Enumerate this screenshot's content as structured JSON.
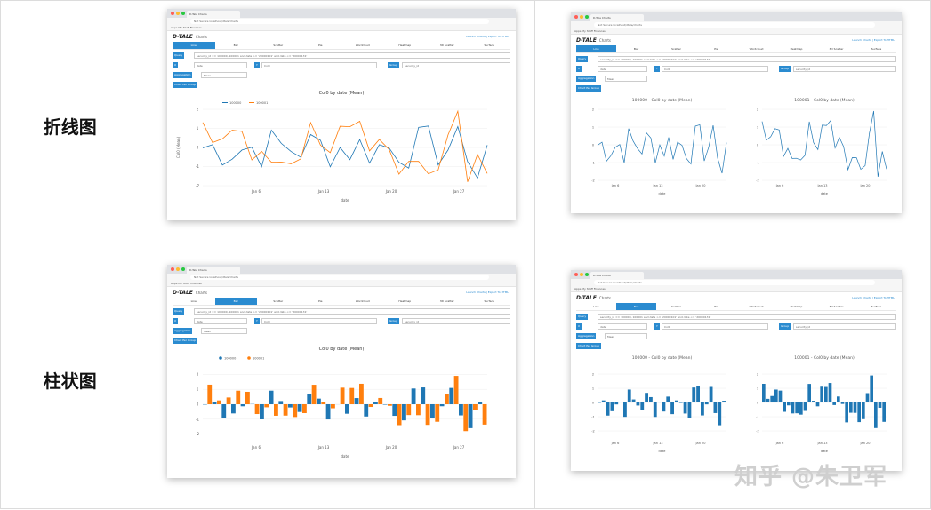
{
  "rows": [
    {
      "label": "折线图",
      "left": {
        "browser_tab": "D-Tale Charts",
        "url": "Not Secure  localhost/dtale/charts",
        "bookmarks": "Apps   My Stuff   Finances",
        "app_title": "Charts",
        "app_links": "Launch Charts   |   Export To HTML",
        "tabs": [
          "Line",
          "Bar",
          "Scatter",
          "Pie",
          "Wordcloud",
          "Heatmap",
          "3D Scatter",
          "Surface"
        ],
        "active_tab": 0,
        "query": "security_id == 100000, 100001 and date >= '20000101' and date <= '20000131'",
        "x_value": "date",
        "y_value": "Col0",
        "group_value": "security_id",
        "aggregation": "Mean",
        "chart_title": "Col0 by date (Mean)",
        "legend": [
          "100000",
          "100001"
        ],
        "y_axis": "Col0 (Mean)",
        "x_axis": "date",
        "x_ticks": [
          "Jan 6\n2000",
          "Jan 13",
          "Jan 20",
          "Jan 27"
        ]
      },
      "right": {
        "chart_titles": [
          "100000 - Col0 by date (Mean)",
          "100001 - Col0 by date (Mean)"
        ]
      }
    },
    {
      "label": "柱状图",
      "left": {
        "active_tab": 1,
        "chart_title": "Col0 by date (Mean)",
        "legend": [
          "100000",
          "100001"
        ]
      },
      "right": {
        "chart_titles": [
          "100000 - Col0 by date (Mean)",
          "100001 - Col0 by date (Mean)"
        ]
      }
    }
  ],
  "colors": {
    "blue": "#1f77b4",
    "orange": "#ff7f0e",
    "accent": "#2a8bd0"
  },
  "watermark": "知乎 @朱卫军"
}
